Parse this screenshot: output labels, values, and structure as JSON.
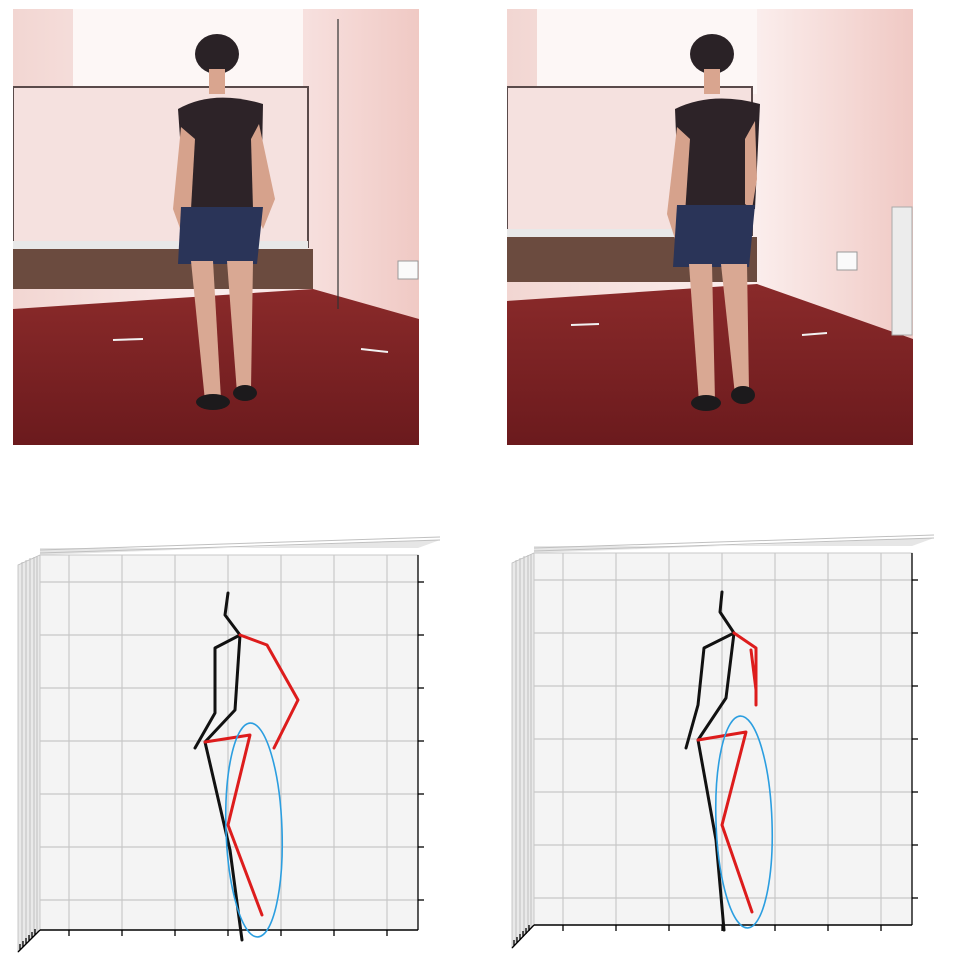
{
  "figure": {
    "panels": [
      {
        "kind": "photo",
        "subject": "person-walking-back-view",
        "view": "frame-1"
      },
      {
        "kind": "photo",
        "subject": "person-walking-back-view",
        "view": "frame-2"
      },
      {
        "kind": "3d-pose-plot",
        "skeleton_colors": {
          "left": "#111111",
          "right": "#dd1c1c"
        },
        "highlight_color": "#2b9ee0",
        "highlight": "right-leg-circled"
      },
      {
        "kind": "3d-pose-plot",
        "skeleton_colors": {
          "left": "#111111",
          "right": "#dd1c1c"
        },
        "highlight_color": "#2b9ee0",
        "highlight": "right-leg-circled"
      }
    ],
    "colors": {
      "wall": "#f3d9d6",
      "floor": "#7c1f22",
      "shirt": "#2d2328",
      "shorts": "#2a3458",
      "grid_bg": "#f4f4f4",
      "grid_line": "#c8c8c8"
    }
  }
}
